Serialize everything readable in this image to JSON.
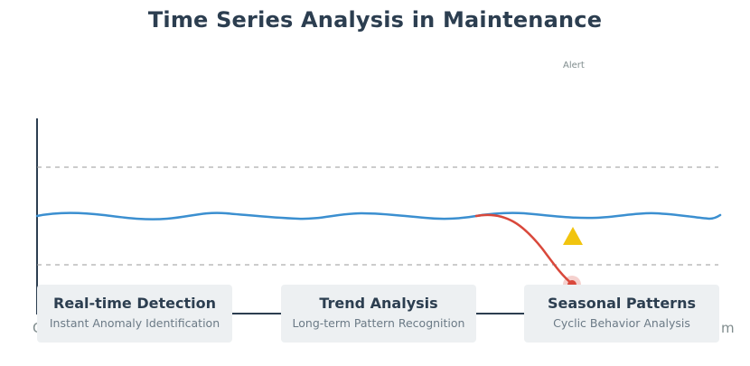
{
  "title": "Time Series Analysis in Maintenance",
  "alert_label": "Alert",
  "axis": {
    "start_label_fragment": "C",
    "end_label_fragment": "m"
  },
  "colors": {
    "signal": "#3b8fd0",
    "anomaly": "#d9483b",
    "warning": "#f1c40f",
    "axis": "#2c3e50",
    "threshold": "#999999"
  },
  "cards": [
    {
      "title": "Real-time Detection",
      "subtitle": "Instant Anomaly Identification"
    },
    {
      "title": "Trend Analysis",
      "subtitle": "Long-term Pattern Recognition"
    },
    {
      "title": "Seasonal Patterns",
      "subtitle": "Cyclic Behavior Analysis"
    }
  ],
  "icons": {
    "warning": "warning-triangle-icon",
    "anomaly_point": "anomaly-point-icon"
  }
}
